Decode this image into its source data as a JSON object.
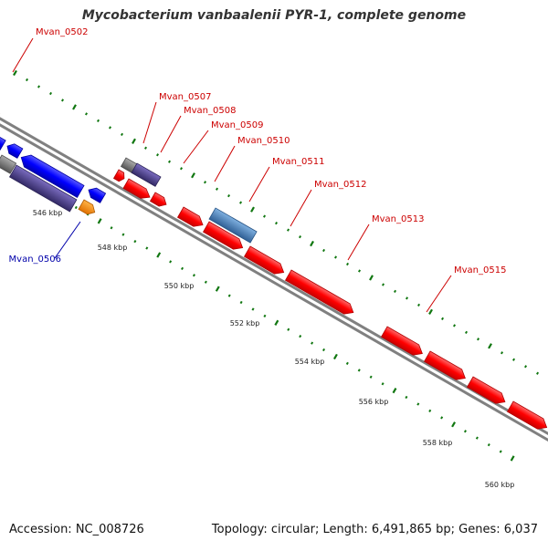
{
  "title": "Mycobacterium vanbaalenii PYR-1, complete genome",
  "footer": {
    "accession": "Accession: NC_008726",
    "stats": "Topology: circular; Length: 6,491,865 bp; Genes: 6,037"
  },
  "colors": {
    "forward_cds": "#ff0000",
    "reverse_cds": "#0000ff",
    "grey": "#777777",
    "purple": "#4b3c8c",
    "orange": "#ff8c00",
    "steel_blue": "#4a7fb5",
    "tick": "#117711",
    "backbone": "#808080",
    "label_red": "#cc0000",
    "label_blue": "#0000aa"
  },
  "tick_labels": [
    "546 kbp",
    "548 kbp",
    "550 kbp",
    "552 kbp",
    "554 kbp",
    "556 kbp",
    "558 kbp",
    "560 kbp"
  ],
  "gene_labels": [
    {
      "name": "Mvan_0502",
      "strand": "forward"
    },
    {
      "name": "Mvan_0507",
      "strand": "forward"
    },
    {
      "name": "Mvan_0508",
      "strand": "forward"
    },
    {
      "name": "Mvan_0509",
      "strand": "forward"
    },
    {
      "name": "Mvan_0510",
      "strand": "forward"
    },
    {
      "name": "Mvan_0511",
      "strand": "forward"
    },
    {
      "name": "Mvan_0512",
      "strand": "forward"
    },
    {
      "name": "Mvan_0513",
      "strand": "forward"
    },
    {
      "name": "Mvan_0515",
      "strand": "forward"
    },
    {
      "name": "Mvan_0506",
      "strand": "reverse"
    }
  ]
}
